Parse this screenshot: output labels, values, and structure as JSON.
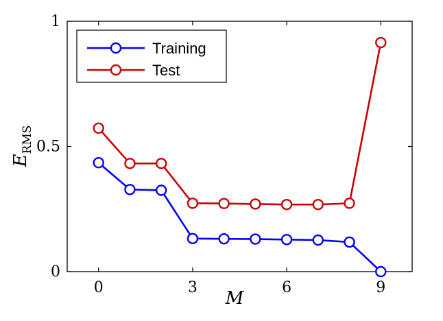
{
  "chart_data": {
    "type": "line",
    "x": [
      0,
      1,
      2,
      3,
      4,
      5,
      6,
      7,
      8,
      9
    ],
    "series": [
      {
        "name": "Training",
        "color": "#0000ff",
        "values": [
          0.435,
          0.328,
          0.325,
          0.132,
          0.131,
          0.13,
          0.128,
          0.126,
          0.118,
          0.0
        ]
      },
      {
        "name": "Test",
        "color": "#cc0000",
        "values": [
          0.573,
          0.432,
          0.432,
          0.273,
          0.272,
          0.27,
          0.268,
          0.268,
          0.273,
          0.915
        ]
      }
    ],
    "xlim": [
      -1,
      10
    ],
    "ylim": [
      0,
      1
    ],
    "xticks": [
      0,
      3,
      6,
      9
    ],
    "yticks": [
      0,
      0.5,
      1
    ],
    "ytick_labels": [
      "0",
      "0.5",
      "1"
    ],
    "xlabel": "M",
    "ylabel": "E",
    "ylabel_sub": "RMS",
    "legend_position": "top-left",
    "grid": false,
    "marker": "circle"
  }
}
